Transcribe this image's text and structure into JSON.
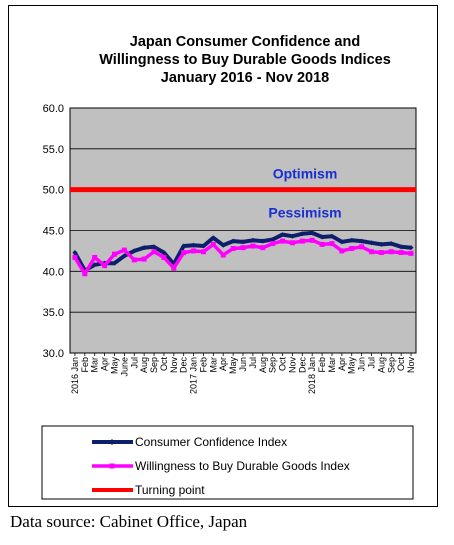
{
  "chart_data": {
    "type": "line",
    "title_lines": [
      "Japan Consumer Confidence and",
      "Willingness to Buy Durable Goods Indices",
      "January 2016 - Nov 2018"
    ],
    "ylim": [
      30.0,
      60.0
    ],
    "yticks": [
      "60.0",
      "55.0",
      "50.0",
      "45.0",
      "40.0",
      "35.0",
      "30.0"
    ],
    "ytick_values": [
      60,
      55,
      50,
      45,
      40,
      35,
      30
    ],
    "grid": "horizontal",
    "x_labels": [
      "2016 Jan",
      "Feb",
      "Mar",
      "Apr",
      "May",
      "June",
      "Jul",
      "Aug",
      "Sep",
      "Oct",
      "Nov",
      "Dec",
      "2017 Jan",
      "Feb",
      "Mar",
      "Apr",
      "May",
      "Jun",
      "Jul",
      "Aug",
      "Sep",
      "Oct",
      "Nov",
      "Dec",
      "2018 Jan",
      "Feb",
      "Mar",
      "Apr",
      "May",
      "Jun",
      "Jul",
      "Aug",
      "Sep",
      "Oct",
      "Nov"
    ],
    "annotations": [
      {
        "text": "Optimism",
        "value": 52.0
      },
      {
        "text": "Pessimism",
        "value": 47.2
      }
    ],
    "legend_position": "bottom",
    "series": [
      {
        "name": "Consumer Confidence Index",
        "color": "#0d1f6b",
        "values": [
          42.3,
          40.1,
          40.8,
          41.0,
          41.0,
          41.9,
          42.5,
          42.9,
          43.0,
          42.3,
          40.9,
          43.1,
          43.2,
          43.1,
          44.1,
          43.2,
          43.7,
          43.6,
          43.8,
          43.7,
          43.9,
          44.5,
          44.3,
          44.6,
          44.7,
          44.2,
          44.3,
          43.6,
          43.8,
          43.7,
          43.5,
          43.3,
          43.4,
          43.0,
          42.9
        ]
      },
      {
        "name": "Willingness to Buy Durable Goods Index",
        "color": "#ff00ff",
        "values": [
          41.7,
          39.7,
          41.7,
          40.7,
          42.1,
          42.6,
          41.4,
          41.5,
          42.4,
          41.7,
          40.4,
          42.3,
          42.5,
          42.4,
          43.3,
          42.0,
          42.8,
          42.9,
          43.1,
          42.9,
          43.4,
          43.7,
          43.5,
          43.7,
          43.8,
          43.3,
          43.4,
          42.5,
          42.8,
          43.0,
          42.4,
          42.3,
          42.4,
          42.3,
          42.2
        ]
      },
      {
        "name": "Turning point",
        "color": "#ff0000",
        "values": [
          50.0,
          50.0
        ]
      }
    ]
  },
  "source_text": "Data source: Cabinet Office, Japan"
}
